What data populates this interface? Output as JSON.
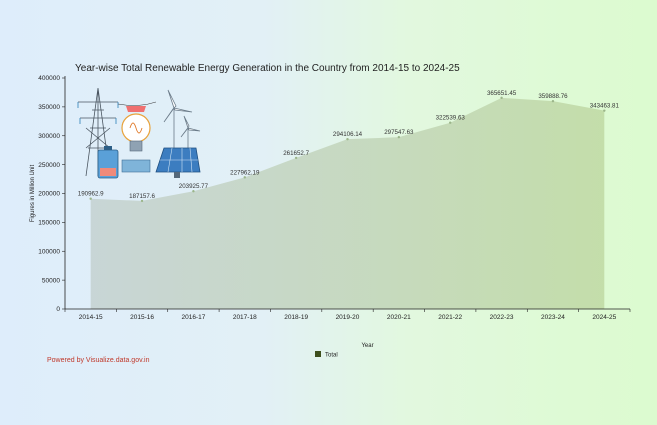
{
  "chart_data": {
    "type": "area",
    "title": "Year-wise Total Renewable Energy Generation in the Country from 2014-15 to 2024-25",
    "xlabel": "Year",
    "ylabel": "Figures in Million Unit",
    "ylim": [
      0,
      400000
    ],
    "yticks": [
      0,
      50000,
      100000,
      150000,
      200000,
      250000,
      300000,
      350000,
      400000
    ],
    "categories": [
      "2014-15",
      "2015-16",
      "2016-17",
      "2017-18",
      "2018-19",
      "2019-20",
      "2020-21",
      "2021-22",
      "2022-23",
      "2023-24",
      "2024-25"
    ],
    "series": [
      {
        "name": "Total",
        "values": [
          190962.9,
          187157.6,
          203925.77,
          227962.19,
          261652.7,
          294106.14,
          297547.63,
          322539.63,
          365651.45,
          359888.76,
          343463.81
        ],
        "labels": [
          "190962.9",
          "187157.6",
          "203925.77",
          "227962.19",
          "261652.7",
          "294106.14",
          "297547.63",
          "322539.63",
          "365651.45",
          "359888.76",
          "343463.81"
        ],
        "color": "#b8d4a8"
      }
    ],
    "legend_position": "bottom-center",
    "grid": false
  },
  "footer": {
    "powered_by": "Powered by Visualize.data.gov.in"
  },
  "colors": {
    "legend_swatch": "#3d4f1c",
    "label_text": "#333333"
  },
  "decoration": {
    "icons": [
      "transmission-tower-icon",
      "light-bulb-icon",
      "wind-turbine-icon",
      "solar-panel-icon",
      "battery-icon"
    ]
  }
}
